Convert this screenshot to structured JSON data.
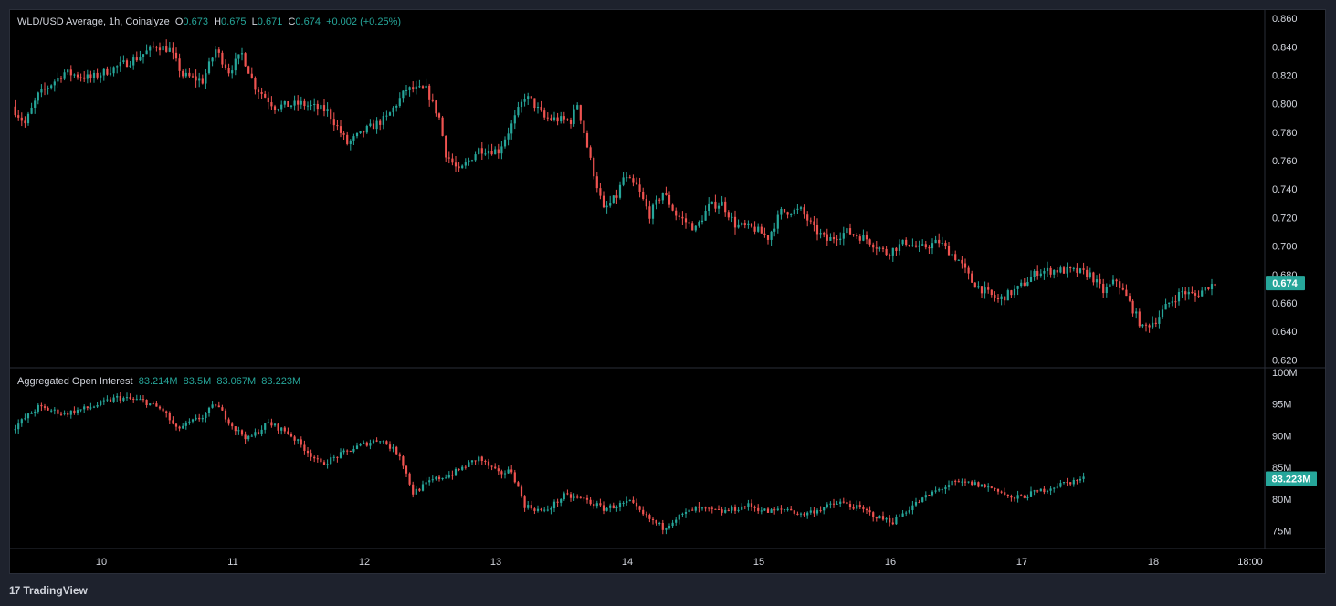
{
  "colors": {
    "up": "#26a69a",
    "down": "#ef5350",
    "text": "#d1d4dc",
    "bg": "#000000",
    "grid": "#2a2e39"
  },
  "price_legend": {
    "symbol": "WLD/USD Average, 1h, Coinalyze",
    "o_label": "O",
    "o": "0.673",
    "h_label": "H",
    "h": "0.675",
    "l_label": "L",
    "l": "0.671",
    "c_label": "C",
    "c": "0.674",
    "change": "+0.002 (+0.25%)"
  },
  "oi_legend": {
    "title": "Aggregated Open Interest",
    "o": "83.214M",
    "h": "83.5M",
    "l": "83.067M",
    "c": "83.223M"
  },
  "branding": {
    "name": "TradingView"
  },
  "chart_data": [
    {
      "type": "candlestick",
      "title": "WLD/USD Average, 1h, Coinalyze",
      "y_ticks": [
        "0.860",
        "0.840",
        "0.820",
        "0.800",
        "0.780",
        "0.760",
        "0.740",
        "0.720",
        "0.700",
        "0.680",
        "0.660",
        "0.640",
        "0.620"
      ],
      "ylim": [
        0.617,
        0.862
      ],
      "last_price_label": "0.674",
      "last_price": 0.674,
      "path_anchors": [
        [
          0,
          0.798
        ],
        [
          4,
          0.786
        ],
        [
          8,
          0.806
        ],
        [
          16,
          0.822
        ],
        [
          24,
          0.818
        ],
        [
          32,
          0.826
        ],
        [
          38,
          0.832
        ],
        [
          44,
          0.841
        ],
        [
          48,
          0.838
        ],
        [
          52,
          0.82
        ],
        [
          58,
          0.816
        ],
        [
          62,
          0.838
        ],
        [
          66,
          0.823
        ],
        [
          70,
          0.835
        ],
        [
          74,
          0.812
        ],
        [
          80,
          0.798
        ],
        [
          88,
          0.8
        ],
        [
          96,
          0.795
        ],
        [
          102,
          0.772
        ],
        [
          108,
          0.782
        ],
        [
          114,
          0.79
        ],
        [
          120,
          0.81
        ],
        [
          126,
          0.81
        ],
        [
          130,
          0.79
        ],
        [
          132,
          0.765
        ],
        [
          136,
          0.752
        ],
        [
          142,
          0.768
        ],
        [
          148,
          0.767
        ],
        [
          152,
          0.785
        ],
        [
          156,
          0.805
        ],
        [
          158,
          0.802
        ],
        [
          162,
          0.79
        ],
        [
          170,
          0.788
        ],
        [
          172,
          0.8
        ],
        [
          176,
          0.76
        ],
        [
          180,
          0.725
        ],
        [
          184,
          0.735
        ],
        [
          186,
          0.748
        ],
        [
          190,
          0.742
        ],
        [
          194,
          0.722
        ],
        [
          198,
          0.738
        ],
        [
          202,
          0.722
        ],
        [
          208,
          0.712
        ],
        [
          212,
          0.728
        ],
        [
          216,
          0.73
        ],
        [
          220,
          0.715
        ],
        [
          226,
          0.712
        ],
        [
          230,
          0.706
        ],
        [
          234,
          0.724
        ],
        [
          240,
          0.725
        ],
        [
          244,
          0.712
        ],
        [
          248,
          0.704
        ],
        [
          254,
          0.71
        ],
        [
          260,
          0.705
        ],
        [
          266,
          0.695
        ],
        [
          272,
          0.703
        ],
        [
          276,
          0.698
        ],
        [
          282,
          0.703
        ],
        [
          288,
          0.69
        ],
        [
          292,
          0.675
        ],
        [
          296,
          0.668
        ],
        [
          300,
          0.662
        ],
        [
          306,
          0.67
        ],
        [
          312,
          0.682
        ],
        [
          318,
          0.683
        ],
        [
          324,
          0.682
        ],
        [
          328,
          0.68
        ],
        [
          332,
          0.668
        ],
        [
          336,
          0.676
        ],
        [
          340,
          0.66
        ],
        [
          344,
          0.642
        ],
        [
          348,
          0.648
        ],
        [
          352,
          0.66
        ],
        [
          356,
          0.668
        ],
        [
          360,
          0.665
        ],
        [
          364,
          0.672
        ],
        [
          366,
          0.674
        ]
      ]
    },
    {
      "type": "candlestick",
      "title": "Aggregated Open Interest",
      "y_ticks": [
        "100M",
        "95M",
        "90M",
        "85M",
        "80M",
        "75M"
      ],
      "ylim": [
        72.5,
        100
      ],
      "last_value_label": "83.223M",
      "last_value": 83.223,
      "path_anchors": [
        [
          0,
          91.0
        ],
        [
          8,
          94.5
        ],
        [
          16,
          93.5
        ],
        [
          24,
          94.5
        ],
        [
          32,
          96.0
        ],
        [
          40,
          95.5
        ],
        [
          46,
          94.0
        ],
        [
          50,
          91.0
        ],
        [
          58,
          93.0
        ],
        [
          62,
          95.0
        ],
        [
          68,
          91.0
        ],
        [
          72,
          89.5
        ],
        [
          78,
          92.0
        ],
        [
          84,
          90.5
        ],
        [
          90,
          87.5
        ],
        [
          94,
          85.5
        ],
        [
          100,
          87.0
        ],
        [
          106,
          88.5
        ],
        [
          112,
          89.5
        ],
        [
          118,
          87.0
        ],
        [
          122,
          81.0
        ],
        [
          128,
          83.0
        ],
        [
          134,
          84.0
        ],
        [
          142,
          86.5
        ],
        [
          148,
          84.0
        ],
        [
          152,
          84.5
        ],
        [
          156,
          79.0
        ],
        [
          162,
          78.0
        ],
        [
          168,
          80.5
        ],
        [
          174,
          80.0
        ],
        [
          180,
          78.5
        ],
        [
          188,
          79.5
        ],
        [
          192,
          77.5
        ],
        [
          198,
          75.5
        ],
        [
          202,
          77.0
        ],
        [
          208,
          78.5
        ],
        [
          216,
          78.0
        ],
        [
          224,
          79.0
        ],
        [
          230,
          78.0
        ],
        [
          236,
          78.5
        ],
        [
          240,
          77.5
        ],
        [
          246,
          78.5
        ],
        [
          252,
          79.5
        ],
        [
          258,
          78.5
        ],
        [
          264,
          77.0
        ],
        [
          268,
          76.5
        ],
        [
          274,
          79.0
        ],
        [
          280,
          81.0
        ],
        [
          286,
          82.5
        ],
        [
          292,
          82.5
        ],
        [
          296,
          82.0
        ],
        [
          300,
          81.5
        ],
        [
          304,
          80.0
        ],
        [
          308,
          80.5
        ],
        [
          314,
          81.5
        ],
        [
          320,
          82.5
        ],
        [
          326,
          83.2
        ]
      ]
    }
  ],
  "x_axis": {
    "ticks": [
      "10",
      "11",
      "12",
      "13",
      "14",
      "15",
      "16",
      "17",
      "18",
      "18:00"
    ]
  }
}
